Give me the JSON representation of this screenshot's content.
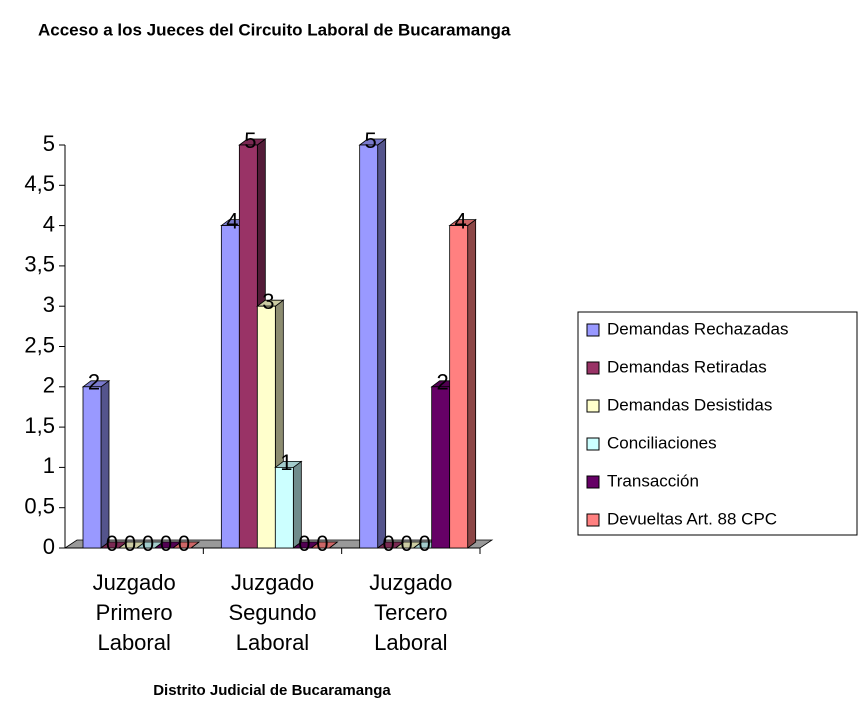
{
  "chart_data": {
    "type": "bar3d",
    "title": "Acceso a los Jueces del Circuito Laboral de Bucaramanga",
    "x_label": "Distrito Judicial de Bucaramanga",
    "categories": [
      "Juzgado Primero Laboral",
      "Juzgado Segundo Laboral",
      "Juzgado Tercero Laboral"
    ],
    "series": [
      {
        "name": "Demandas Rechazadas",
        "color": "#9999ff",
        "values": [
          2,
          4,
          5
        ]
      },
      {
        "name": "Demandas Retiradas",
        "color": "#993366",
        "values": [
          0,
          5,
          0
        ]
      },
      {
        "name": "Demandas Desistidas",
        "color": "#ffffcc",
        "values": [
          0,
          3,
          0
        ]
      },
      {
        "name": "Conciliaciones",
        "color": "#ccffff",
        "values": [
          0,
          1,
          0
        ]
      },
      {
        "name": "Transacción",
        "color": "#660066",
        "values": [
          0,
          0,
          2
        ]
      },
      {
        "name": "Devueltas Art. 88 CPC",
        "color": "#ff8080",
        "values": [
          0,
          0,
          4
        ]
      }
    ],
    "ylim": [
      0,
      5
    ],
    "yticks": [
      0,
      {
        "value": 0.5,
        "label": "0,5"
      },
      1,
      {
        "value": 1.5,
        "label": "1,5"
      },
      2,
      {
        "value": 2.5,
        "label": "2,5"
      },
      3,
      {
        "value": 3.5,
        "label": "3,5"
      },
      4,
      {
        "value": 4.5,
        "label": "4,5"
      },
      5
    ],
    "legend": "right"
  }
}
